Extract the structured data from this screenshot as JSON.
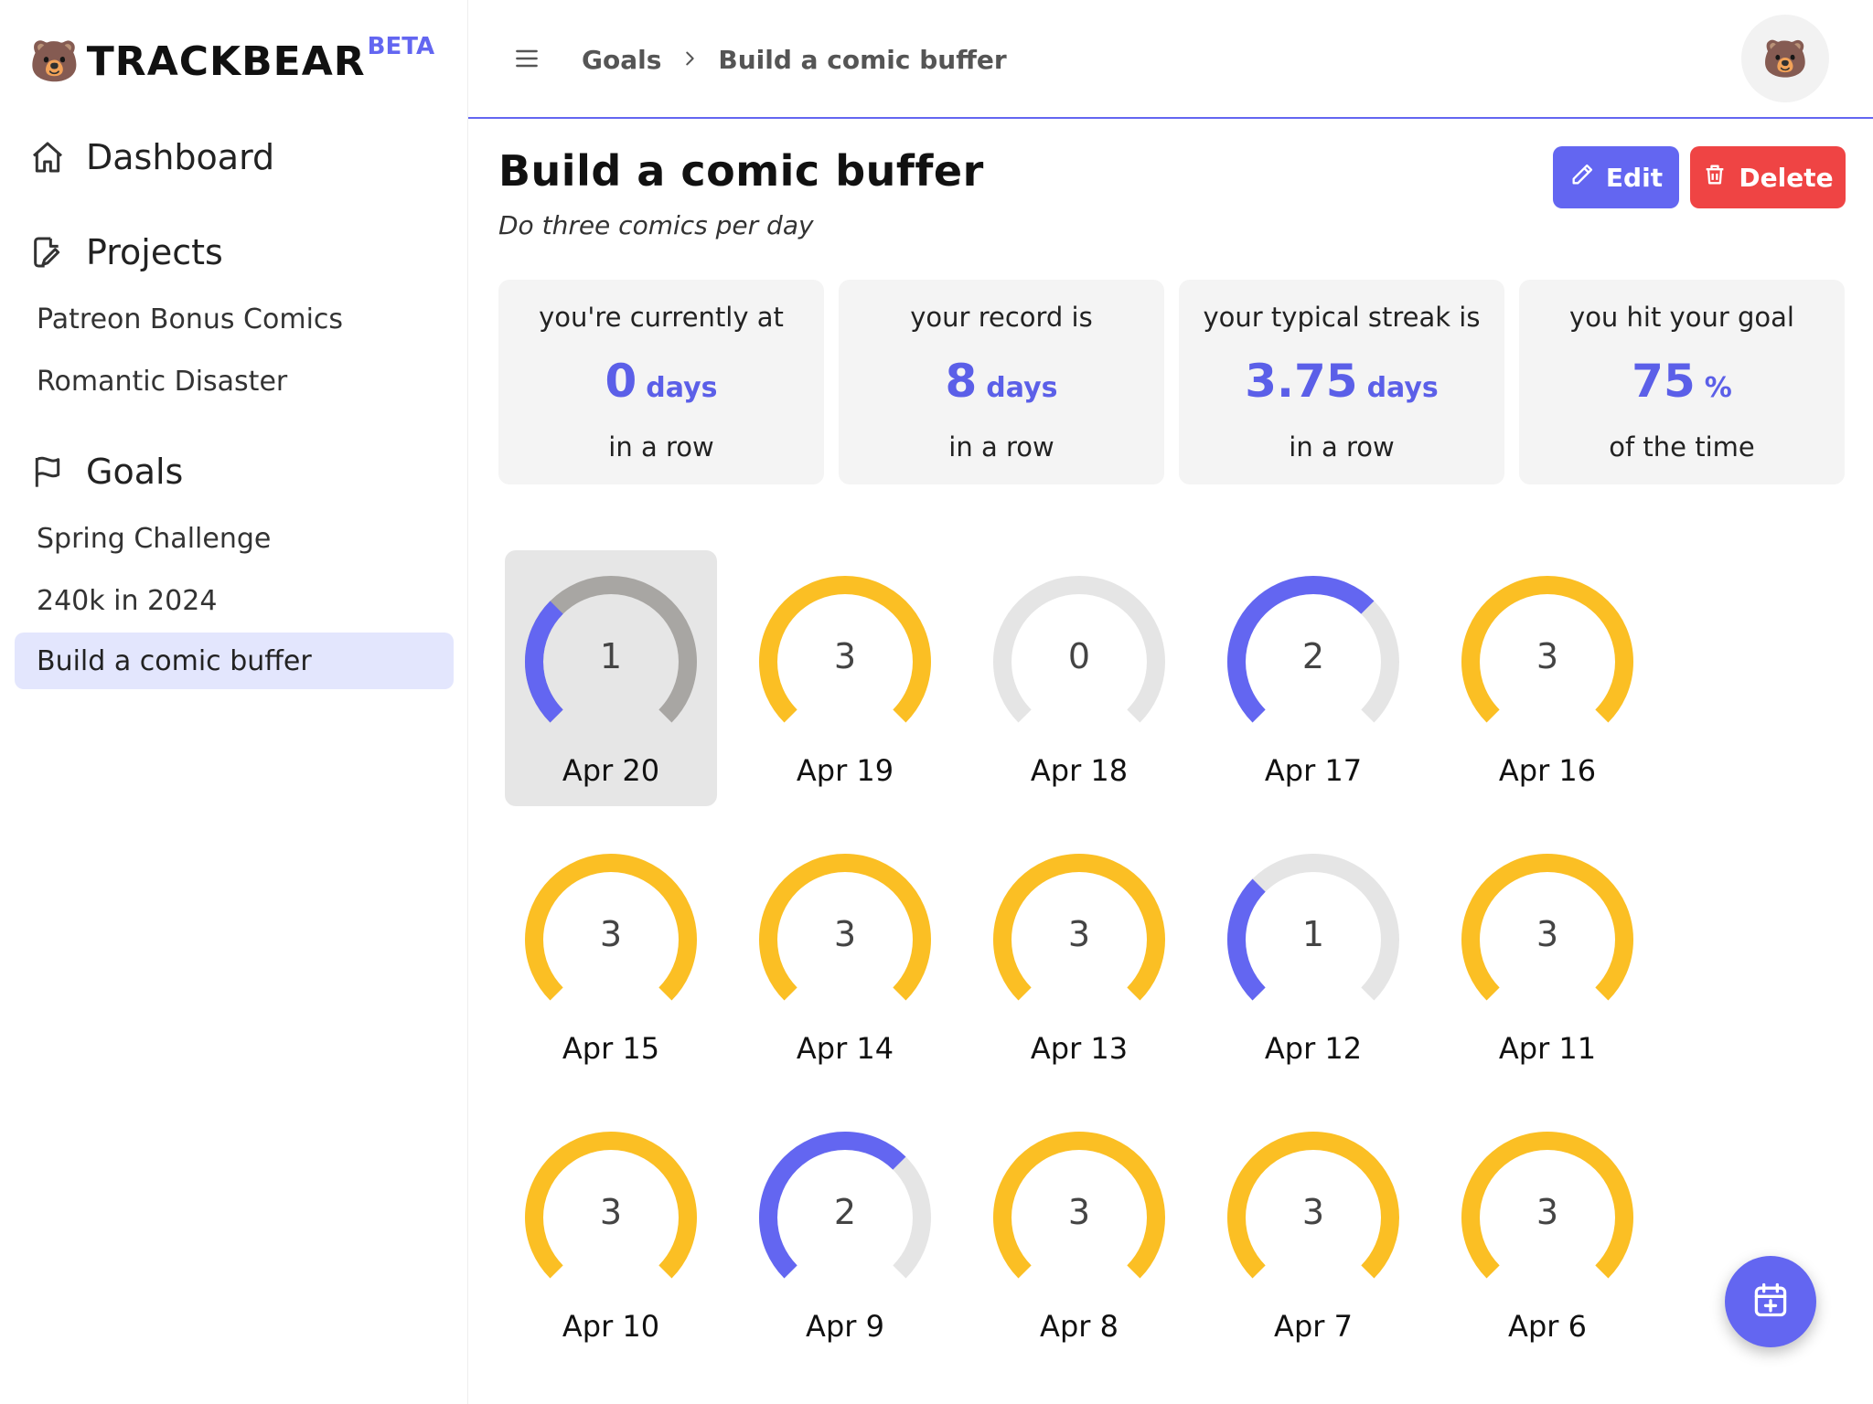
{
  "brand": {
    "name": "TRACKBEAR",
    "badge": "BETA",
    "logo_glyph": "🐻"
  },
  "sidebar": {
    "dashboard_label": "Dashboard",
    "projects_label": "Projects",
    "projects": [
      "Patreon Bonus Comics",
      "Romantic Disaster"
    ],
    "goals_label": "Goals",
    "goals": [
      "Spring Challenge",
      "240k in 2024",
      "Build a comic buffer"
    ],
    "active_goal_index": 2
  },
  "topbar": {
    "breadcrumb": [
      "Goals",
      "Build a comic buffer"
    ],
    "avatar_glyph": "🐻"
  },
  "goal": {
    "title": "Build a comic buffer",
    "description": "Do three comics per day",
    "target_per_day": 3,
    "edit_label": "Edit",
    "delete_label": "Delete"
  },
  "stats": [
    {
      "pre": "you're currently at",
      "value": "0",
      "unit": "days",
      "post": "in a row"
    },
    {
      "pre": "your record is",
      "value": "8",
      "unit": "days",
      "post": "in a row"
    },
    {
      "pre": "your typical streak is",
      "value": "3.75",
      "unit": "days",
      "post": "in a row"
    },
    {
      "pre": "you hit your goal",
      "value": "75",
      "unit": "%",
      "post": "of the time"
    }
  ],
  "days": [
    {
      "date": "Apr 20",
      "count": 1,
      "selected": true
    },
    {
      "date": "Apr 19",
      "count": 3
    },
    {
      "date": "Apr 18",
      "count": 0
    },
    {
      "date": "Apr 17",
      "count": 2
    },
    {
      "date": "Apr 16",
      "count": 3
    },
    {
      "date": "Apr 15",
      "count": 3
    },
    {
      "date": "Apr 14",
      "count": 3
    },
    {
      "date": "Apr 13",
      "count": 3
    },
    {
      "date": "Apr 12",
      "count": 1
    },
    {
      "date": "Apr 11",
      "count": 3
    },
    {
      "date": "Apr 10",
      "count": 3
    },
    {
      "date": "Apr 9",
      "count": 2
    },
    {
      "date": "Apr 8",
      "count": 3
    },
    {
      "date": "Apr 7",
      "count": 3
    },
    {
      "date": "Apr 6",
      "count": 3
    }
  ],
  "colors": {
    "accent": "#6366f1",
    "complete": "#fbbf24",
    "partial": "#6366f1",
    "track": "#e5e5e5",
    "track_selected": "#a8a6a3",
    "danger": "#ef4444"
  },
  "icons": {
    "dashboard": "home-icon",
    "projects": "pencil-doc-icon",
    "goals": "flag-icon",
    "menu": "hamburger-icon",
    "breadcrumb_sep": "chevron-right-icon",
    "edit": "pencil-icon",
    "delete": "trash-icon",
    "fab": "calendar-plus-icon"
  }
}
